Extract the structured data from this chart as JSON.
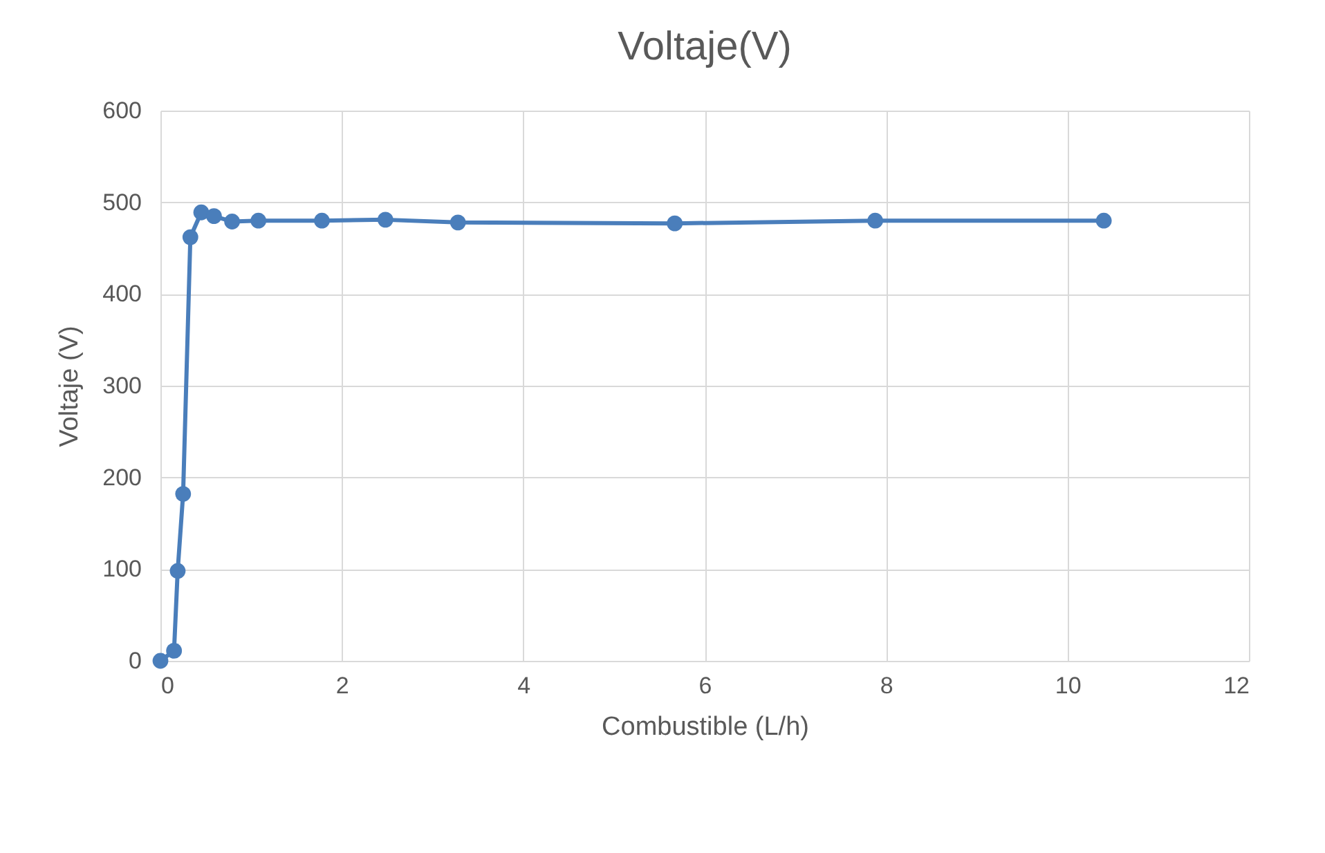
{
  "chart_data": {
    "type": "line",
    "title": "Voltaje(V)",
    "xlabel": "Combustible (L/h)",
    "ylabel": "Voltaje (V)",
    "x": [
      0,
      0.15,
      0.19,
      0.25,
      0.33,
      0.45,
      0.59,
      0.79,
      1.08,
      1.78,
      2.48,
      3.28,
      5.67,
      7.88,
      10.4
    ],
    "series": [
      {
        "color": "#4a7ebb",
        "values": [
          0,
          11,
          98,
          182,
          462,
          489,
          485,
          479,
          480,
          480,
          481,
          478,
          477,
          480,
          480
        ]
      }
    ],
    "xlim": [
      0,
      12
    ],
    "xticks": [
      0,
      2,
      4,
      6,
      8,
      10,
      12
    ],
    "ylim": [
      0,
      600
    ],
    "yticks": [
      0,
      100,
      200,
      300,
      400,
      500,
      600
    ],
    "grid": true,
    "marker": "circle",
    "line_style": "solid"
  }
}
